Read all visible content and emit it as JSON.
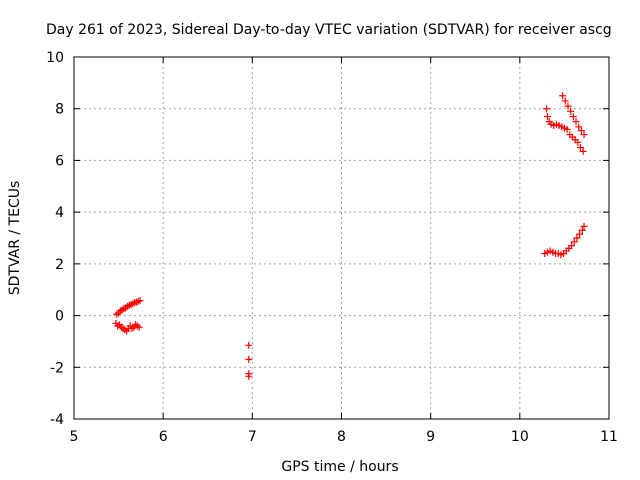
{
  "chart_data": {
    "type": "scatter",
    "title": "Day 261 of 2023, Sidereal Day-to-day VTEC variation (SDTVAR) for receiver ascg",
    "xlabel": "GPS time / hours",
    "ylabel": "SDTVAR / TECUs",
    "xlim": [
      5,
      11
    ],
    "ylim": [
      -4,
      10
    ],
    "xticks": [
      5,
      6,
      7,
      8,
      9,
      10,
      11
    ],
    "yticks": [
      -4,
      -2,
      0,
      2,
      4,
      6,
      8,
      10
    ],
    "grid": true,
    "marker": "+",
    "color": "#ff0000",
    "series": [
      {
        "name": "segment-1-upper",
        "x": [
          5.48,
          5.5,
          5.52,
          5.54,
          5.56,
          5.58,
          5.6,
          5.62,
          5.64,
          5.66,
          5.68,
          5.7,
          5.72,
          5.74
        ],
        "y": [
          0.05,
          0.1,
          0.18,
          0.22,
          0.27,
          0.3,
          0.36,
          0.4,
          0.43,
          0.46,
          0.5,
          0.52,
          0.55,
          0.58
        ]
      },
      {
        "name": "segment-1-lower",
        "x": [
          5.47,
          5.49,
          5.51,
          5.53,
          5.55,
          5.57,
          5.59,
          5.61,
          5.63,
          5.65,
          5.67,
          5.69,
          5.71,
          5.73
        ],
        "y": [
          -0.3,
          -0.4,
          -0.35,
          -0.45,
          -0.5,
          -0.55,
          -0.6,
          -0.5,
          -0.4,
          -0.5,
          -0.45,
          -0.35,
          -0.4,
          -0.45
        ]
      },
      {
        "name": "segment-2",
        "x": [
          6.96,
          6.96,
          6.96,
          6.96
        ],
        "y": [
          -1.15,
          -1.7,
          -2.25,
          -2.35
        ]
      },
      {
        "name": "segment-3-upper-a",
        "x": [
          10.3,
          10.31,
          10.33,
          10.35,
          10.38,
          10.41,
          10.44,
          10.47,
          10.5,
          10.53,
          10.56,
          10.59,
          10.62,
          10.65,
          10.68,
          10.71
        ],
        "y": [
          8.0,
          7.7,
          7.5,
          7.4,
          7.35,
          7.4,
          7.35,
          7.3,
          7.25,
          7.2,
          7.0,
          6.9,
          6.8,
          6.7,
          6.5,
          6.35
        ]
      },
      {
        "name": "segment-3-upper-b",
        "x": [
          10.48,
          10.51,
          10.54,
          10.57,
          10.6,
          10.63,
          10.66,
          10.69,
          10.72
        ],
        "y": [
          8.5,
          8.3,
          8.1,
          7.9,
          7.7,
          7.5,
          7.3,
          7.15,
          7.0
        ]
      },
      {
        "name": "segment-3-lower",
        "x": [
          10.28,
          10.31,
          10.34,
          10.37,
          10.4,
          10.43,
          10.46,
          10.49,
          10.52,
          10.55,
          10.58,
          10.61,
          10.64,
          10.67,
          10.7,
          10.72
        ],
        "y": [
          2.4,
          2.45,
          2.5,
          2.45,
          2.4,
          2.4,
          2.35,
          2.4,
          2.5,
          2.6,
          2.7,
          2.85,
          3.0,
          3.15,
          3.3,
          3.45
        ]
      }
    ]
  }
}
